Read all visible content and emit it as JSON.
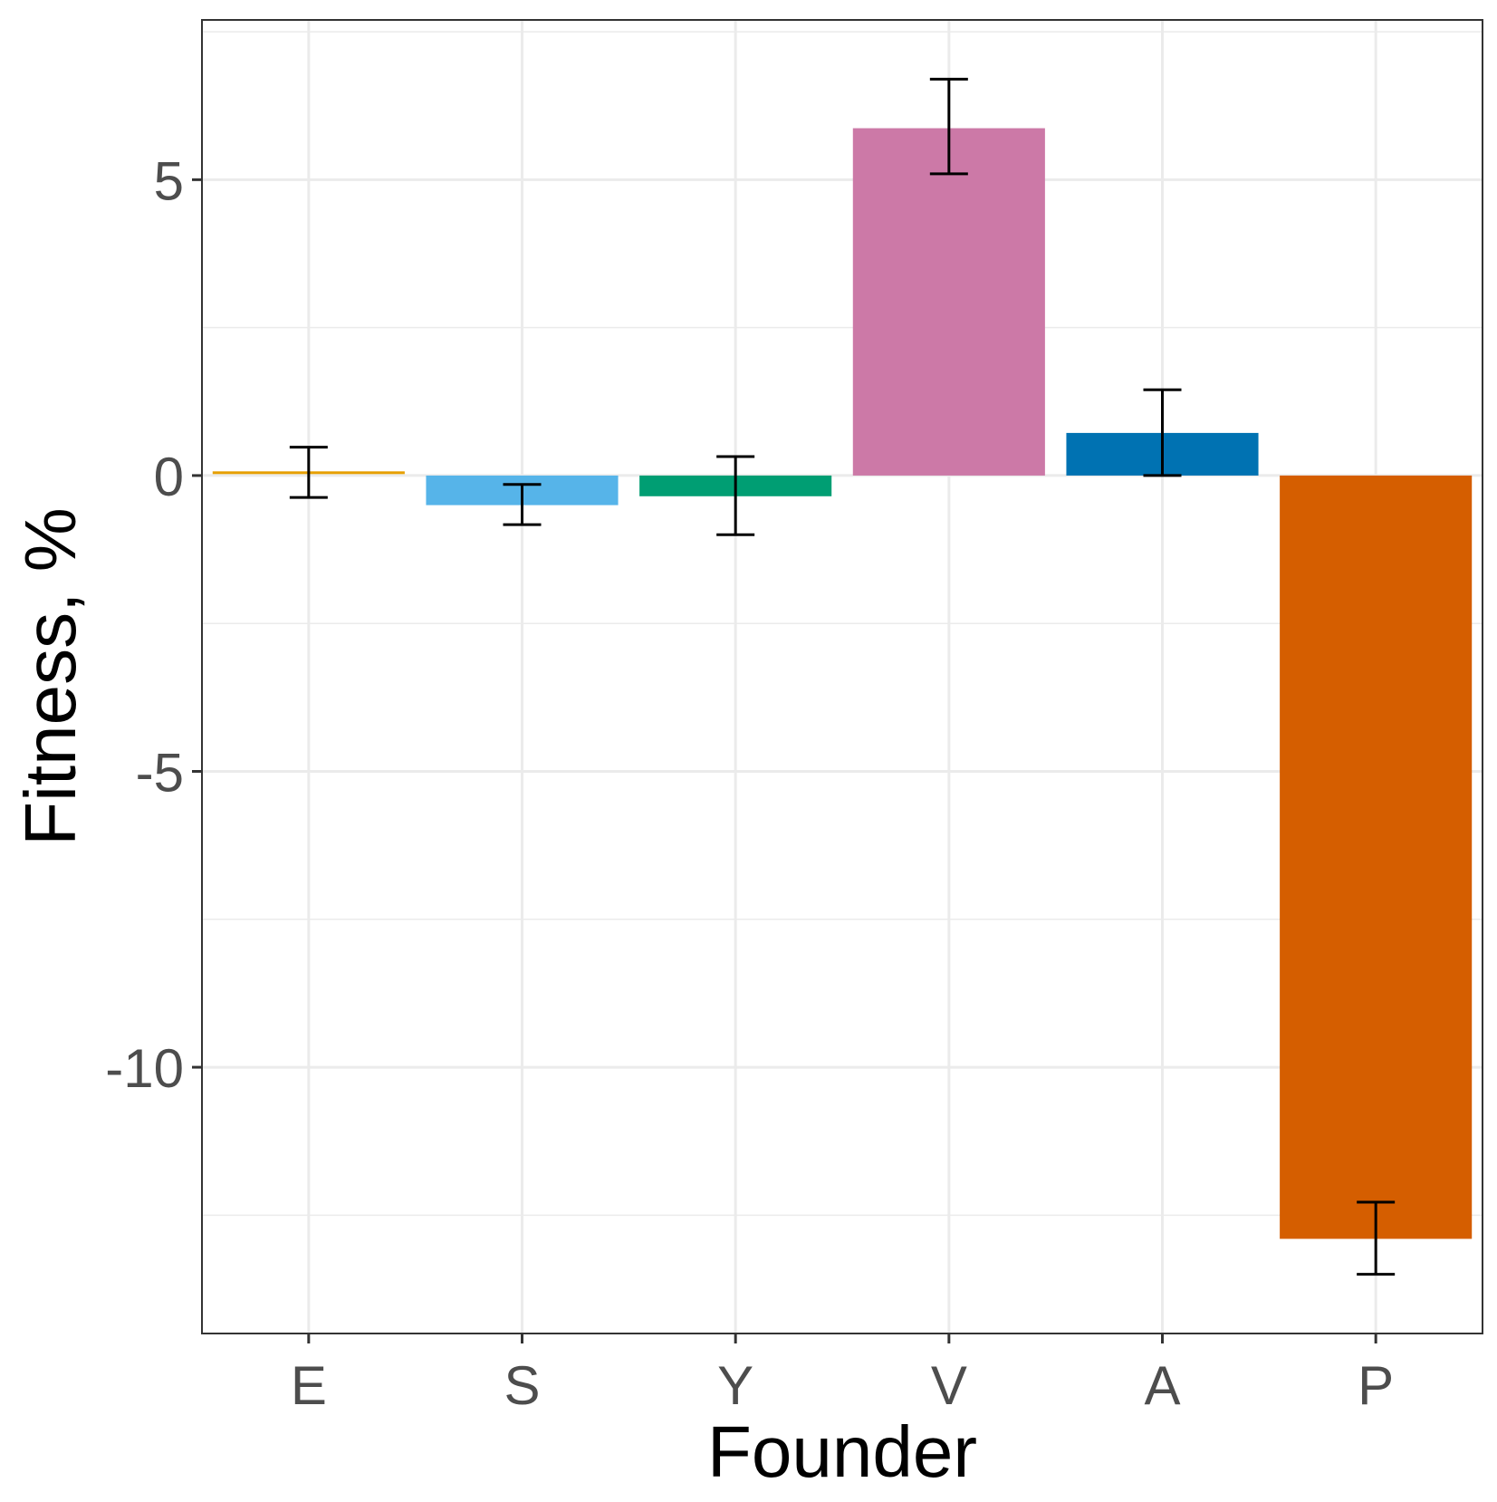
{
  "chart_data": {
    "type": "bar",
    "title": "",
    "xlabel": "Founder",
    "ylabel": "Fitness, %",
    "categories": [
      "E",
      "S",
      "Y",
      "V",
      "A",
      "P"
    ],
    "values": [
      0.04,
      -0.5,
      -0.35,
      5.87,
      0.72,
      -12.9
    ],
    "error_low": [
      -0.37,
      -0.83,
      -1.0,
      5.1,
      0.0,
      -13.5
    ],
    "error_high": [
      0.48,
      -0.15,
      0.32,
      6.7,
      1.45,
      -12.28
    ],
    "colors": [
      "#E69F00",
      "#56B4E9",
      "#009E73",
      "#CC79A7",
      "#0072B2",
      "#D55E00"
    ],
    "ylim": [
      -14.5,
      7.7
    ],
    "yticks": [
      5,
      0,
      -5,
      -10
    ],
    "ytick_labels": [
      "5",
      "0",
      "-5",
      "-10"
    ],
    "grid": true,
    "legend": "none"
  }
}
